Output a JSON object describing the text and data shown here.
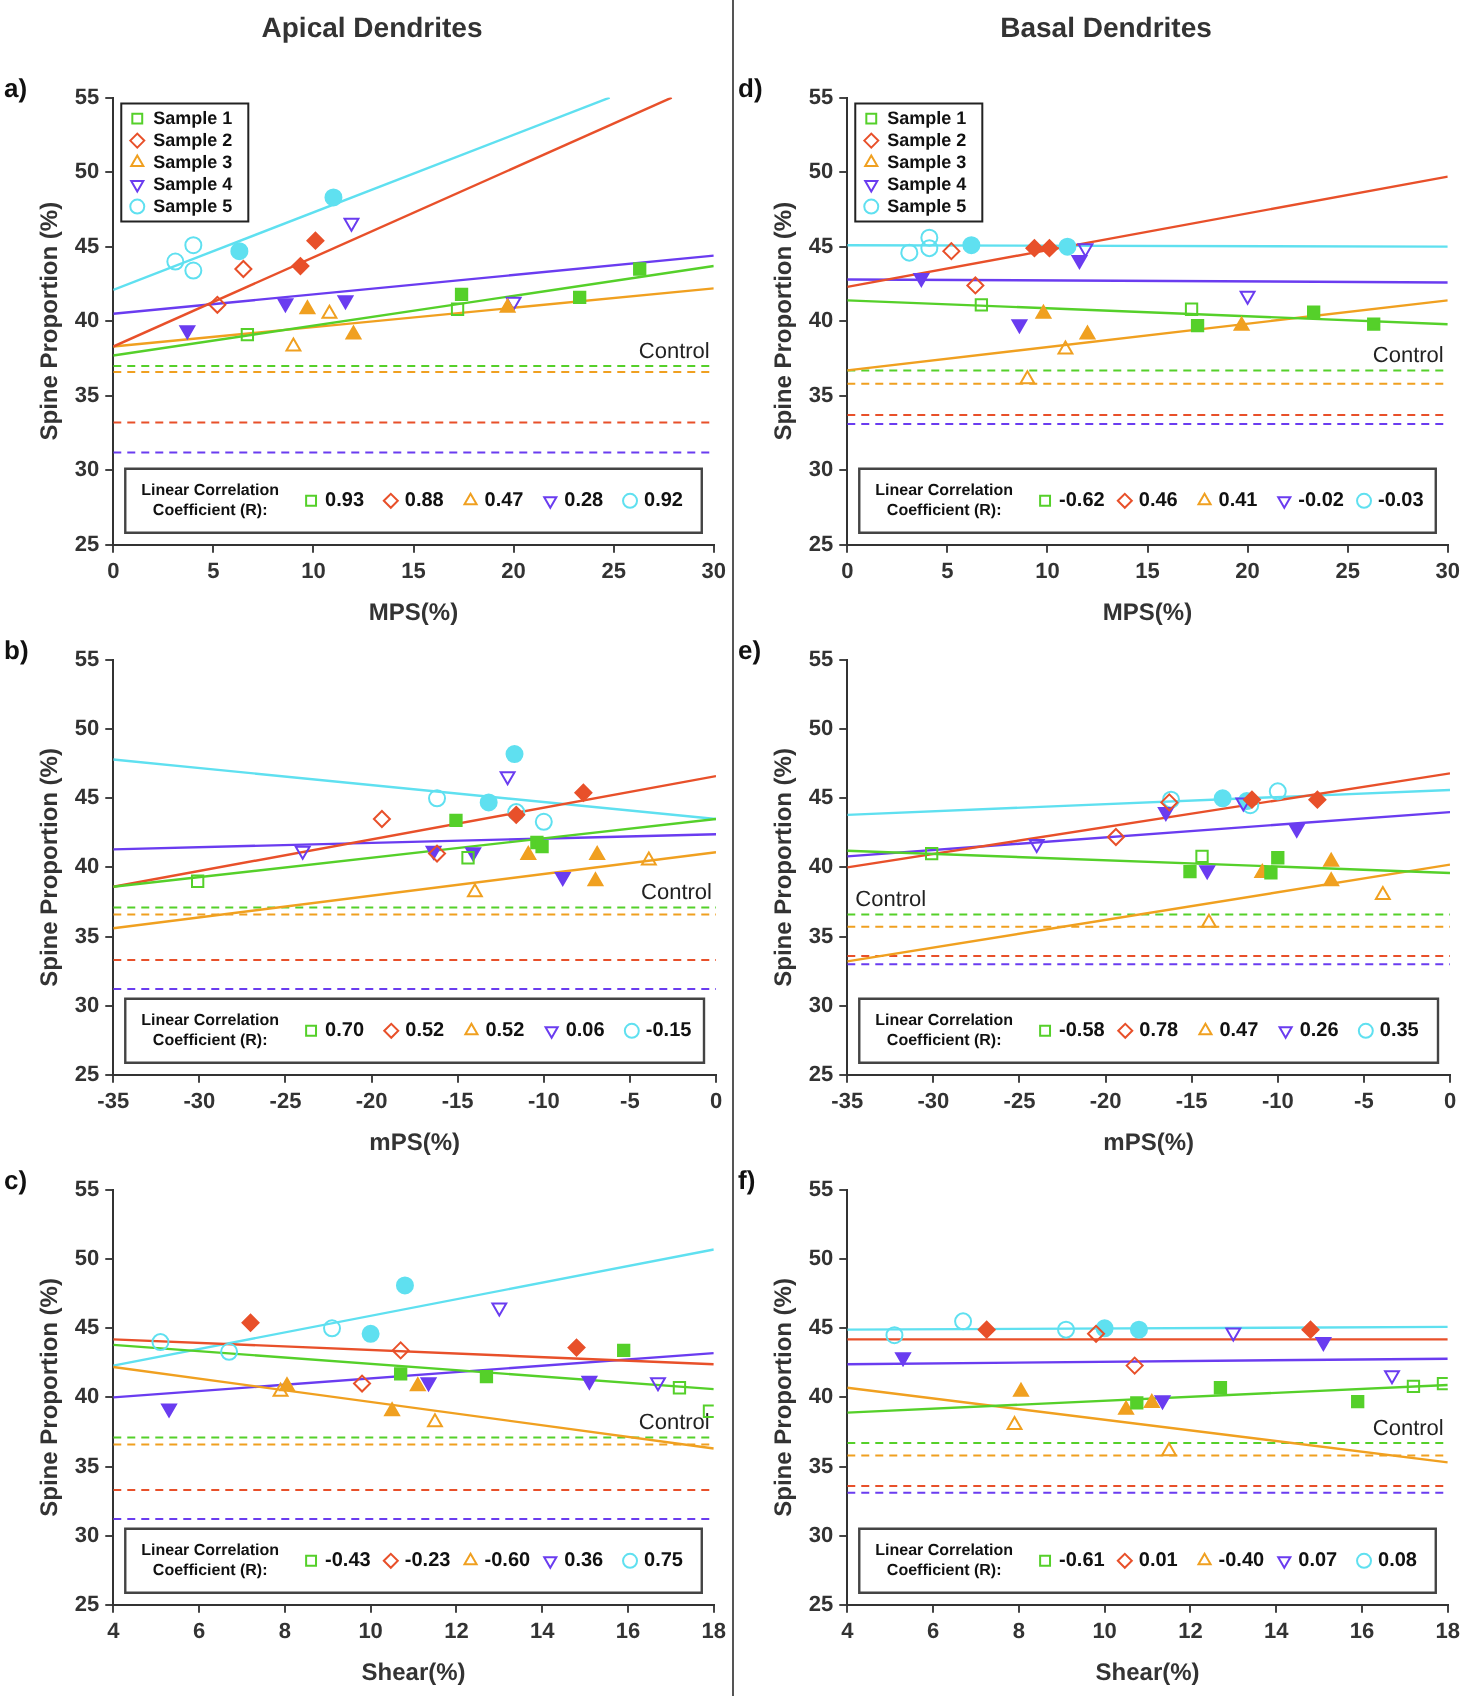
{
  "chart_data": [
    {
      "type": "scatter",
      "title": "Apical Dendrites",
      "xlabel": "MPS(%)",
      "ylabel": "Spine Proportion (%)",
      "xlim": [
        0,
        30
      ],
      "xticks": [
        0,
        5,
        10,
        15,
        20,
        25,
        30
      ],
      "ylim": [
        25,
        55
      ],
      "yticks": [
        25,
        30,
        35,
        40,
        45,
        50,
        55
      ],
      "legend": "top left",
      "legend_title": "Linear Correlation Coefficient (R):",
      "annotations": [
        "a)"
      ],
      "ref_lines": [
        {
          "axis": "y",
          "value": 37.0,
          "color": "#55d02a",
          "line_style": "dashed",
          "label": "Control"
        },
        {
          "axis": "y",
          "value": 36.6,
          "color": "#f0a020",
          "line_style": "dashed"
        },
        {
          "axis": "y",
          "value": 33.2,
          "color": "#e8502a",
          "line_style": "dashed"
        },
        {
          "axis": "y",
          "value": 31.2,
          "color": "#6a3cf0",
          "line_style": "dashed"
        }
      ],
      "series": [
        {
          "name": "Sample 1",
          "color": "#55d02a",
          "marker": "square",
          "x": [
            6.7,
            17.2
          ],
          "values": [
            39.1,
            40.8
          ]
        },
        {
          "color": "#55d02a",
          "marker": "square",
          "x": [
            17.4,
            23.3,
            26.3
          ],
          "values": [
            41.8,
            41.6,
            43.5
          ]
        },
        {
          "name": "Sample 2",
          "color": "#e8502a",
          "marker": "diamond",
          "x": [
            5.2,
            6.5
          ],
          "values": [
            41.1,
            43.5
          ]
        },
        {
          "color": "#e8502a",
          "marker": "diamond",
          "x": [
            9.35,
            10.1
          ],
          "values": [
            43.7,
            45.4
          ]
        },
        {
          "name": "Sample 3",
          "color": "#f0a020",
          "marker": "triangle",
          "x": [
            9.0,
            10.8
          ],
          "values": [
            38.3,
            40.5
          ]
        },
        {
          "color": "#f0a020",
          "marker": "triangle",
          "x": [
            9.7,
            12.0,
            19.7
          ],
          "values": [
            40.8,
            39.1,
            40.9
          ]
        },
        {
          "name": "Sample 4",
          "color": "#6a3cf0",
          "marker": "triangle-down",
          "x": [
            11.9,
            20.0
          ],
          "values": [
            46.6,
            41.3
          ]
        },
        {
          "color": "#6a3cf0",
          "marker": "triangle-down",
          "x": [
            3.7,
            8.6,
            11.6
          ],
          "values": [
            39.4,
            41.2,
            41.4
          ]
        },
        {
          "name": "Sample 5",
          "color": "#5fe0f0",
          "marker": "circle",
          "x": [
            3.1,
            4.0,
            4.0
          ],
          "values": [
            44.0,
            45.1,
            43.4
          ]
        },
        {
          "color": "#5fe0f0",
          "marker": "circle",
          "x": [
            6.3,
            11.0
          ],
          "values": [
            44.7,
            48.3
          ]
        },
        {
          "type": "line",
          "name": "0.93",
          "color": "#55d02a",
          "x": [
            0,
            30
          ],
          "values": [
            37.7,
            43.7
          ]
        },
        {
          "type": "line",
          "name": "0.88",
          "color": "#e8502a",
          "x": [
            0,
            27.9
          ],
          "values": [
            38.3,
            55
          ]
        },
        {
          "type": "line",
          "name": "0.47",
          "color": "#f0a020",
          "x": [
            0,
            30
          ],
          "values": [
            38.3,
            42.2
          ]
        },
        {
          "type": "line",
          "name": "0.28",
          "color": "#6a3cf0",
          "x": [
            0,
            30
          ],
          "values": [
            40.5,
            44.4
          ]
        },
        {
          "type": "line",
          "name": "0.92",
          "color": "#5fe0f0",
          "x": [
            0,
            24.8
          ],
          "values": [
            42.1,
            55
          ]
        }
      ]
    },
    {
      "type": "scatter",
      "xlabel": "mPS(%)",
      "ylabel": "Spine Proportion (%)",
      "xlim": [
        -35,
        0
      ],
      "xticks": [
        -35,
        -30,
        -25,
        -20,
        -15,
        -10,
        -5,
        0
      ],
      "ylim": [
        25,
        55
      ],
      "yticks": [
        25,
        30,
        35,
        40,
        45,
        50,
        55
      ],
      "legend": "bottom",
      "legend_title": "Linear Correlation Coefficient (R):",
      "annotations": [
        "b)"
      ],
      "ref_lines": [
        {
          "axis": "y",
          "value": 37.1,
          "color": "#55d02a",
          "line_style": "dashed",
          "label": "Control"
        },
        {
          "axis": "y",
          "value": 36.6,
          "color": "#f0a020",
          "line_style": "dashed"
        },
        {
          "axis": "y",
          "value": 33.3,
          "color": "#e8502a",
          "line_style": "dashed"
        },
        {
          "axis": "y",
          "value": 31.2,
          "color": "#6a3cf0",
          "line_style": "dashed"
        }
      ],
      "series": [
        {
          "color": "#55d02a",
          "marker": "square",
          "x": [
            -30.1,
            -14.4
          ],
          "values": [
            39.0,
            40.7
          ]
        },
        {
          "color": "#55d02a",
          "marker": "square",
          "x": [
            -15.1,
            -10.4,
            -10.1
          ],
          "values": [
            43.4,
            41.8,
            41.5
          ]
        },
        {
          "color": "#e8502a",
          "marker": "diamond",
          "x": [
            -19.4,
            -16.2
          ],
          "values": [
            43.5,
            41.0
          ]
        },
        {
          "color": "#e8502a",
          "marker": "diamond",
          "x": [
            -11.6,
            -7.7
          ],
          "values": [
            43.8,
            45.4
          ]
        },
        {
          "color": "#f0a020",
          "marker": "triangle",
          "x": [
            -14.0,
            -3.9
          ],
          "values": [
            38.2,
            40.5
          ]
        },
        {
          "color": "#f0a020",
          "marker": "triangle",
          "x": [
            -10.9,
            -7.0,
            -6.9
          ],
          "values": [
            40.9,
            39.0,
            40.9
          ]
        },
        {
          "color": "#6a3cf0",
          "marker": "triangle-down",
          "x": [
            -24.0,
            -12.1
          ],
          "values": [
            41.2,
            46.6
          ]
        },
        {
          "color": "#6a3cf0",
          "marker": "triangle-down",
          "x": [
            -16.4,
            -14.1,
            -8.9
          ],
          "values": [
            41.2,
            41.1,
            39.3
          ]
        },
        {
          "color": "#5fe0f0",
          "marker": "circle",
          "x": [
            -16.2,
            -11.6,
            -10.0
          ],
          "values": [
            45.0,
            44.0,
            43.3
          ]
        },
        {
          "color": "#5fe0f0",
          "marker": "circle",
          "x": [
            -13.2,
            -11.7
          ],
          "values": [
            44.7,
            48.2
          ]
        },
        {
          "type": "line",
          "name": "0.70",
          "color": "#55d02a",
          "x": [
            -35,
            0
          ],
          "values": [
            38.6,
            43.5
          ]
        },
        {
          "type": "line",
          "name": "0.52",
          "color": "#e8502a",
          "x": [
            -35,
            0
          ],
          "values": [
            38.6,
            46.6
          ]
        },
        {
          "type": "line",
          "name": "0.52",
          "color": "#f0a020",
          "x": [
            -35,
            0
          ],
          "values": [
            35.6,
            41.1
          ]
        },
        {
          "type": "line",
          "name": "0.06",
          "color": "#6a3cf0",
          "x": [
            -35,
            0
          ],
          "values": [
            41.3,
            42.4
          ]
        },
        {
          "type": "line",
          "name": "-0.15",
          "color": "#5fe0f0",
          "x": [
            -35,
            0
          ],
          "values": [
            47.8,
            43.5
          ]
        }
      ]
    },
    {
      "type": "scatter",
      "xlabel": "Shear(%)",
      "ylabel": "Spine Proportion (%)",
      "xlim": [
        4,
        18
      ],
      "xticks": [
        4,
        6,
        8,
        10,
        12,
        14,
        16,
        18
      ],
      "ylim": [
        25,
        55
      ],
      "yticks": [
        25,
        30,
        35,
        40,
        45,
        50,
        55
      ],
      "legend": "bottom",
      "legend_title": "Linear Correlation Coefficient (R):",
      "annotations": [
        "c)"
      ],
      "ref_lines": [
        {
          "axis": "y",
          "value": 37.1,
          "color": "#55d02a",
          "line_style": "dashed",
          "label": "Control"
        },
        {
          "axis": "y",
          "value": 36.6,
          "color": "#f0a020",
          "line_style": "dashed"
        },
        {
          "axis": "y",
          "value": 33.3,
          "color": "#e8502a",
          "line_style": "dashed"
        },
        {
          "axis": "y",
          "value": 31.2,
          "color": "#6a3cf0",
          "line_style": "dashed"
        }
      ],
      "series": [
        {
          "color": "#55d02a",
          "marker": "square",
          "x": [
            17.2,
            17.9
          ],
          "values": [
            40.7,
            39.0
          ]
        },
        {
          "color": "#55d02a",
          "marker": "square",
          "x": [
            10.7,
            12.7,
            15.9
          ],
          "values": [
            41.7,
            41.5,
            43.4
          ]
        },
        {
          "color": "#e8502a",
          "marker": "diamond",
          "x": [
            9.8,
            10.7
          ],
          "values": [
            41.0,
            43.4
          ]
        },
        {
          "color": "#e8502a",
          "marker": "diamond",
          "x": [
            7.2,
            14.8
          ],
          "values": [
            45.4,
            43.6
          ]
        },
        {
          "color": "#f0a020",
          "marker": "triangle",
          "x": [
            7.9,
            11.5
          ],
          "values": [
            40.4,
            38.2
          ]
        },
        {
          "color": "#f0a020",
          "marker": "triangle",
          "x": [
            8.05,
            10.5,
            11.1
          ],
          "values": [
            40.8,
            39.0,
            40.8
          ]
        },
        {
          "color": "#6a3cf0",
          "marker": "triangle-down",
          "x": [
            13.0,
            16.7
          ],
          "values": [
            46.5,
            41.1
          ]
        },
        {
          "color": "#6a3cf0",
          "marker": "triangle-down",
          "x": [
            5.3,
            11.35,
            15.1
          ],
          "values": [
            39.2,
            41.1,
            41.2
          ]
        },
        {
          "color": "#5fe0f0",
          "marker": "circle",
          "x": [
            5.1,
            6.7,
            9.1
          ],
          "values": [
            44.0,
            43.3,
            45.0
          ]
        },
        {
          "color": "#5fe0f0",
          "marker": "circle",
          "x": [
            10.0,
            10.8
          ],
          "values": [
            44.6,
            48.1
          ]
        },
        {
          "type": "line",
          "name": "-0.43",
          "color": "#55d02a",
          "x": [
            4,
            18
          ],
          "values": [
            43.8,
            40.6
          ]
        },
        {
          "type": "line",
          "name": "-0.23",
          "color": "#e8502a",
          "x": [
            4,
            18
          ],
          "values": [
            44.2,
            42.4
          ]
        },
        {
          "type": "line",
          "name": "-0.60",
          "color": "#f0a020",
          "x": [
            4,
            18
          ],
          "values": [
            42.2,
            36.3
          ]
        },
        {
          "type": "line",
          "name": "0.36",
          "color": "#6a3cf0",
          "x": [
            4,
            18
          ],
          "values": [
            40.0,
            43.2
          ]
        },
        {
          "type": "line",
          "name": "0.75",
          "color": "#5fe0f0",
          "x": [
            4,
            18
          ],
          "values": [
            42.3,
            50.7
          ]
        }
      ]
    },
    {
      "type": "scatter",
      "title": "Basal Dendrites",
      "xlabel": "MPS(%)",
      "ylabel": "Spine Proportion (%)",
      "xlim": [
        0,
        30
      ],
      "xticks": [
        0,
        5,
        10,
        15,
        20,
        25,
        30
      ],
      "ylim": [
        25,
        55
      ],
      "yticks": [
        25,
        30,
        35,
        40,
        45,
        50,
        55
      ],
      "legend": "top left",
      "legend_title": "Linear Correlation Coefficient (R):",
      "annotations": [
        "d)"
      ],
      "ref_lines": [
        {
          "axis": "y",
          "value": 36.7,
          "color": "#55d02a",
          "line_style": "dashed",
          "label": "Control"
        },
        {
          "axis": "y",
          "value": 35.8,
          "color": "#f0a020",
          "line_style": "dashed"
        },
        {
          "axis": "y",
          "value": 33.7,
          "color": "#e8502a",
          "line_style": "dashed"
        },
        {
          "axis": "y",
          "value": 33.1,
          "color": "#6a3cf0",
          "line_style": "dashed"
        }
      ],
      "series": [
        {
          "name": "Sample 1",
          "color": "#55d02a",
          "marker": "square",
          "x": [
            6.7,
            17.2
          ],
          "values": [
            41.1,
            40.8
          ]
        },
        {
          "color": "#55d02a",
          "marker": "square",
          "x": [
            17.5,
            23.3,
            26.3
          ],
          "values": [
            39.7,
            40.6,
            39.8
          ]
        },
        {
          "name": "Sample 2",
          "color": "#e8502a",
          "marker": "diamond",
          "x": [
            5.2,
            6.4
          ],
          "values": [
            44.7,
            42.4
          ]
        },
        {
          "color": "#e8502a",
          "marker": "diamond",
          "x": [
            9.35,
            10.1
          ],
          "values": [
            44.9,
            44.9
          ]
        },
        {
          "name": "Sample 3",
          "color": "#f0a020",
          "marker": "triangle",
          "x": [
            9.0,
            10.9
          ],
          "values": [
            36.1,
            38.1
          ]
        },
        {
          "color": "#f0a020",
          "marker": "triangle",
          "x": [
            9.8,
            12.0,
            19.7
          ],
          "values": [
            40.5,
            39.1,
            39.7
          ]
        },
        {
          "name": "Sample 4",
          "color": "#6a3cf0",
          "marker": "triangle-down",
          "x": [
            11.9,
            20.0
          ],
          "values": [
            44.9,
            41.7
          ]
        },
        {
          "color": "#6a3cf0",
          "marker": "triangle-down",
          "x": [
            3.7,
            8.6,
            11.6
          ],
          "values": [
            42.9,
            39.8,
            44.1
          ]
        },
        {
          "name": "Sample 5",
          "color": "#5fe0f0",
          "marker": "circle",
          "x": [
            3.1,
            4.1,
            4.1
          ],
          "values": [
            44.6,
            45.6,
            44.9
          ]
        },
        {
          "color": "#5fe0f0",
          "marker": "circle",
          "x": [
            6.2,
            11.0
          ],
          "values": [
            45.1,
            45.0
          ]
        },
        {
          "type": "line",
          "name": "-0.62",
          "color": "#55d02a",
          "x": [
            0,
            30
          ],
          "values": [
            41.4,
            39.8
          ]
        },
        {
          "type": "line",
          "name": "0.46",
          "color": "#e8502a",
          "x": [
            0,
            30
          ],
          "values": [
            42.3,
            49.7
          ]
        },
        {
          "type": "line",
          "name": "0.41",
          "color": "#f0a020",
          "x": [
            0,
            30
          ],
          "values": [
            36.7,
            41.4
          ]
        },
        {
          "type": "line",
          "name": "-0.02",
          "color": "#6a3cf0",
          "x": [
            0,
            30
          ],
          "values": [
            42.8,
            42.6
          ]
        },
        {
          "type": "line",
          "name": "-0.03",
          "color": "#5fe0f0",
          "x": [
            0,
            30
          ],
          "values": [
            45.1,
            45.0
          ]
        }
      ]
    },
    {
      "type": "scatter",
      "xlabel": "mPS(%)",
      "ylabel": "Spine Proportion (%)",
      "xlim": [
        -35,
        0
      ],
      "xticks": [
        -35,
        -30,
        -25,
        -20,
        -15,
        -10,
        -5,
        0
      ],
      "ylim": [
        25,
        55
      ],
      "yticks": [
        25,
        30,
        35,
        40,
        45,
        50,
        55
      ],
      "legend": "bottom",
      "legend_title": "Linear Correlation Coefficient (R):",
      "annotations": [
        "e)"
      ],
      "ref_lines": [
        {
          "axis": "y",
          "value": 36.6,
          "color": "#55d02a",
          "line_style": "dashed",
          "label": "Control"
        },
        {
          "axis": "y",
          "value": 35.7,
          "color": "#f0a020",
          "line_style": "dashed"
        },
        {
          "axis": "y",
          "value": 33.6,
          "color": "#e8502a",
          "line_style": "dashed"
        },
        {
          "axis": "y",
          "value": 33.0,
          "color": "#6a3cf0",
          "line_style": "dashed"
        }
      ],
      "series": [
        {
          "color": "#55d02a",
          "marker": "square",
          "x": [
            -30.1,
            -14.4
          ],
          "values": [
            41.0,
            40.8
          ]
        },
        {
          "color": "#55d02a",
          "marker": "square",
          "x": [
            -15.1,
            -10.4,
            -10.0
          ],
          "values": [
            39.7,
            39.6,
            40.7
          ]
        },
        {
          "color": "#e8502a",
          "marker": "diamond",
          "x": [
            -19.4,
            -16.3
          ],
          "values": [
            42.2,
            44.7
          ]
        },
        {
          "color": "#e8502a",
          "marker": "diamond",
          "x": [
            -11.5,
            -7.7
          ],
          "values": [
            44.9,
            44.9
          ]
        },
        {
          "color": "#f0a020",
          "marker": "triangle",
          "x": [
            -14.0,
            -3.9
          ],
          "values": [
            36.0,
            38.0
          ]
        },
        {
          "color": "#f0a020",
          "marker": "triangle",
          "x": [
            -10.9,
            -6.9,
            -6.9
          ],
          "values": [
            39.6,
            39.0,
            40.4
          ]
        },
        {
          "color": "#6a3cf0",
          "marker": "triangle-down",
          "x": [
            -24.0,
            -12.0
          ],
          "values": [
            41.7,
            44.7
          ]
        },
        {
          "color": "#6a3cf0",
          "marker": "triangle-down",
          "x": [
            -16.5,
            -14.1,
            -8.9
          ],
          "values": [
            44.0,
            39.8,
            42.8
          ]
        },
        {
          "color": "#5fe0f0",
          "marker": "circle",
          "x": [
            -16.2,
            -11.6,
            -10.0
          ],
          "values": [
            44.9,
            44.5,
            45.5
          ]
        },
        {
          "color": "#5fe0f0",
          "marker": "circle",
          "x": [
            -13.2,
            -11.8
          ],
          "values": [
            45.0,
            44.8
          ]
        },
        {
          "type": "line",
          "name": "-0.58",
          "color": "#55d02a",
          "x": [
            -35,
            0
          ],
          "values": [
            41.2,
            39.6
          ]
        },
        {
          "type": "line",
          "name": "0.78",
          "color": "#e8502a",
          "x": [
            -35,
            0
          ],
          "values": [
            40.0,
            46.8
          ]
        },
        {
          "type": "line",
          "name": "0.47",
          "color": "#f0a020",
          "x": [
            -35,
            0
          ],
          "values": [
            33.2,
            40.2
          ]
        },
        {
          "type": "line",
          "name": "0.26",
          "color": "#6a3cf0",
          "x": [
            -35,
            0
          ],
          "values": [
            40.8,
            44.0
          ]
        },
        {
          "type": "line",
          "name": "0.35",
          "color": "#5fe0f0",
          "x": [
            -35,
            0
          ],
          "values": [
            43.8,
            45.6
          ]
        }
      ]
    },
    {
      "type": "scatter",
      "xlabel": "Shear(%)",
      "ylabel": "Spine Proportion (%)",
      "xlim": [
        4,
        18
      ],
      "xticks": [
        4,
        6,
        8,
        10,
        12,
        14,
        16,
        18
      ],
      "ylim": [
        25,
        55
      ],
      "yticks": [
        25,
        30,
        35,
        40,
        45,
        50,
        55
      ],
      "legend": "bottom",
      "legend_title": "Linear Correlation Coefficient (R):",
      "annotations": [
        "f)"
      ],
      "ref_lines": [
        {
          "axis": "y",
          "value": 36.7,
          "color": "#55d02a",
          "line_style": "dashed",
          "label": "Control"
        },
        {
          "axis": "y",
          "value": 35.8,
          "color": "#f0a020",
          "line_style": "dashed"
        },
        {
          "axis": "y",
          "value": 33.6,
          "color": "#e8502a",
          "line_style": "dashed"
        },
        {
          "axis": "y",
          "value": 33.1,
          "color": "#6a3cf0",
          "line_style": "dashed"
        }
      ],
      "series": [
        {
          "color": "#55d02a",
          "marker": "square",
          "x": [
            17.2,
            17.9
          ],
          "values": [
            40.8,
            41.0
          ]
        },
        {
          "color": "#55d02a",
          "marker": "square",
          "x": [
            10.75,
            12.7,
            15.9
          ],
          "values": [
            39.6,
            40.7,
            39.7
          ]
        },
        {
          "color": "#e8502a",
          "marker": "diamond",
          "x": [
            9.8,
            10.7
          ],
          "values": [
            44.6,
            42.3
          ]
        },
        {
          "color": "#e8502a",
          "marker": "diamond",
          "x": [
            7.25,
            14.8
          ],
          "values": [
            44.9,
            44.9
          ]
        },
        {
          "color": "#f0a020",
          "marker": "triangle",
          "x": [
            7.9,
            11.5
          ],
          "values": [
            38.0,
            36.1
          ]
        },
        {
          "color": "#f0a020",
          "marker": "triangle",
          "x": [
            8.05,
            10.5,
            11.1
          ],
          "values": [
            40.4,
            39.1,
            39.6
          ]
        },
        {
          "color": "#6a3cf0",
          "marker": "triangle-down",
          "x": [
            13.0,
            16.7
          ],
          "values": [
            44.7,
            41.6
          ]
        },
        {
          "color": "#6a3cf0",
          "marker": "triangle-down",
          "x": [
            5.3,
            11.35,
            15.1
          ],
          "values": [
            42.9,
            39.8,
            44.0
          ]
        },
        {
          "color": "#5fe0f0",
          "marker": "circle",
          "x": [
            5.1,
            6.7,
            9.1
          ],
          "values": [
            44.5,
            45.5,
            44.9
          ]
        },
        {
          "color": "#5fe0f0",
          "marker": "circle",
          "x": [
            10.0,
            10.8
          ],
          "values": [
            45.0,
            44.9
          ]
        },
        {
          "type": "line",
          "name": "-0.61",
          "color": "#55d02a",
          "x": [
            4,
            18
          ],
          "values": [
            38.9,
            40.9
          ]
        },
        {
          "type": "line",
          "name": "0.01",
          "color": "#e8502a",
          "x": [
            4,
            18
          ],
          "values": [
            44.2,
            44.2
          ]
        },
        {
          "type": "line",
          "name": "-0.40",
          "color": "#f0a020",
          "x": [
            4,
            18
          ],
          "values": [
            40.7,
            35.3
          ]
        },
        {
          "type": "line",
          "name": "0.07",
          "color": "#6a3cf0",
          "x": [
            4,
            18
          ],
          "values": [
            42.4,
            42.8
          ]
        },
        {
          "type": "line",
          "name": "0.08",
          "color": "#5fe0f0",
          "x": [
            4,
            18
          ],
          "values": [
            44.9,
            45.1
          ]
        }
      ]
    }
  ]
}
